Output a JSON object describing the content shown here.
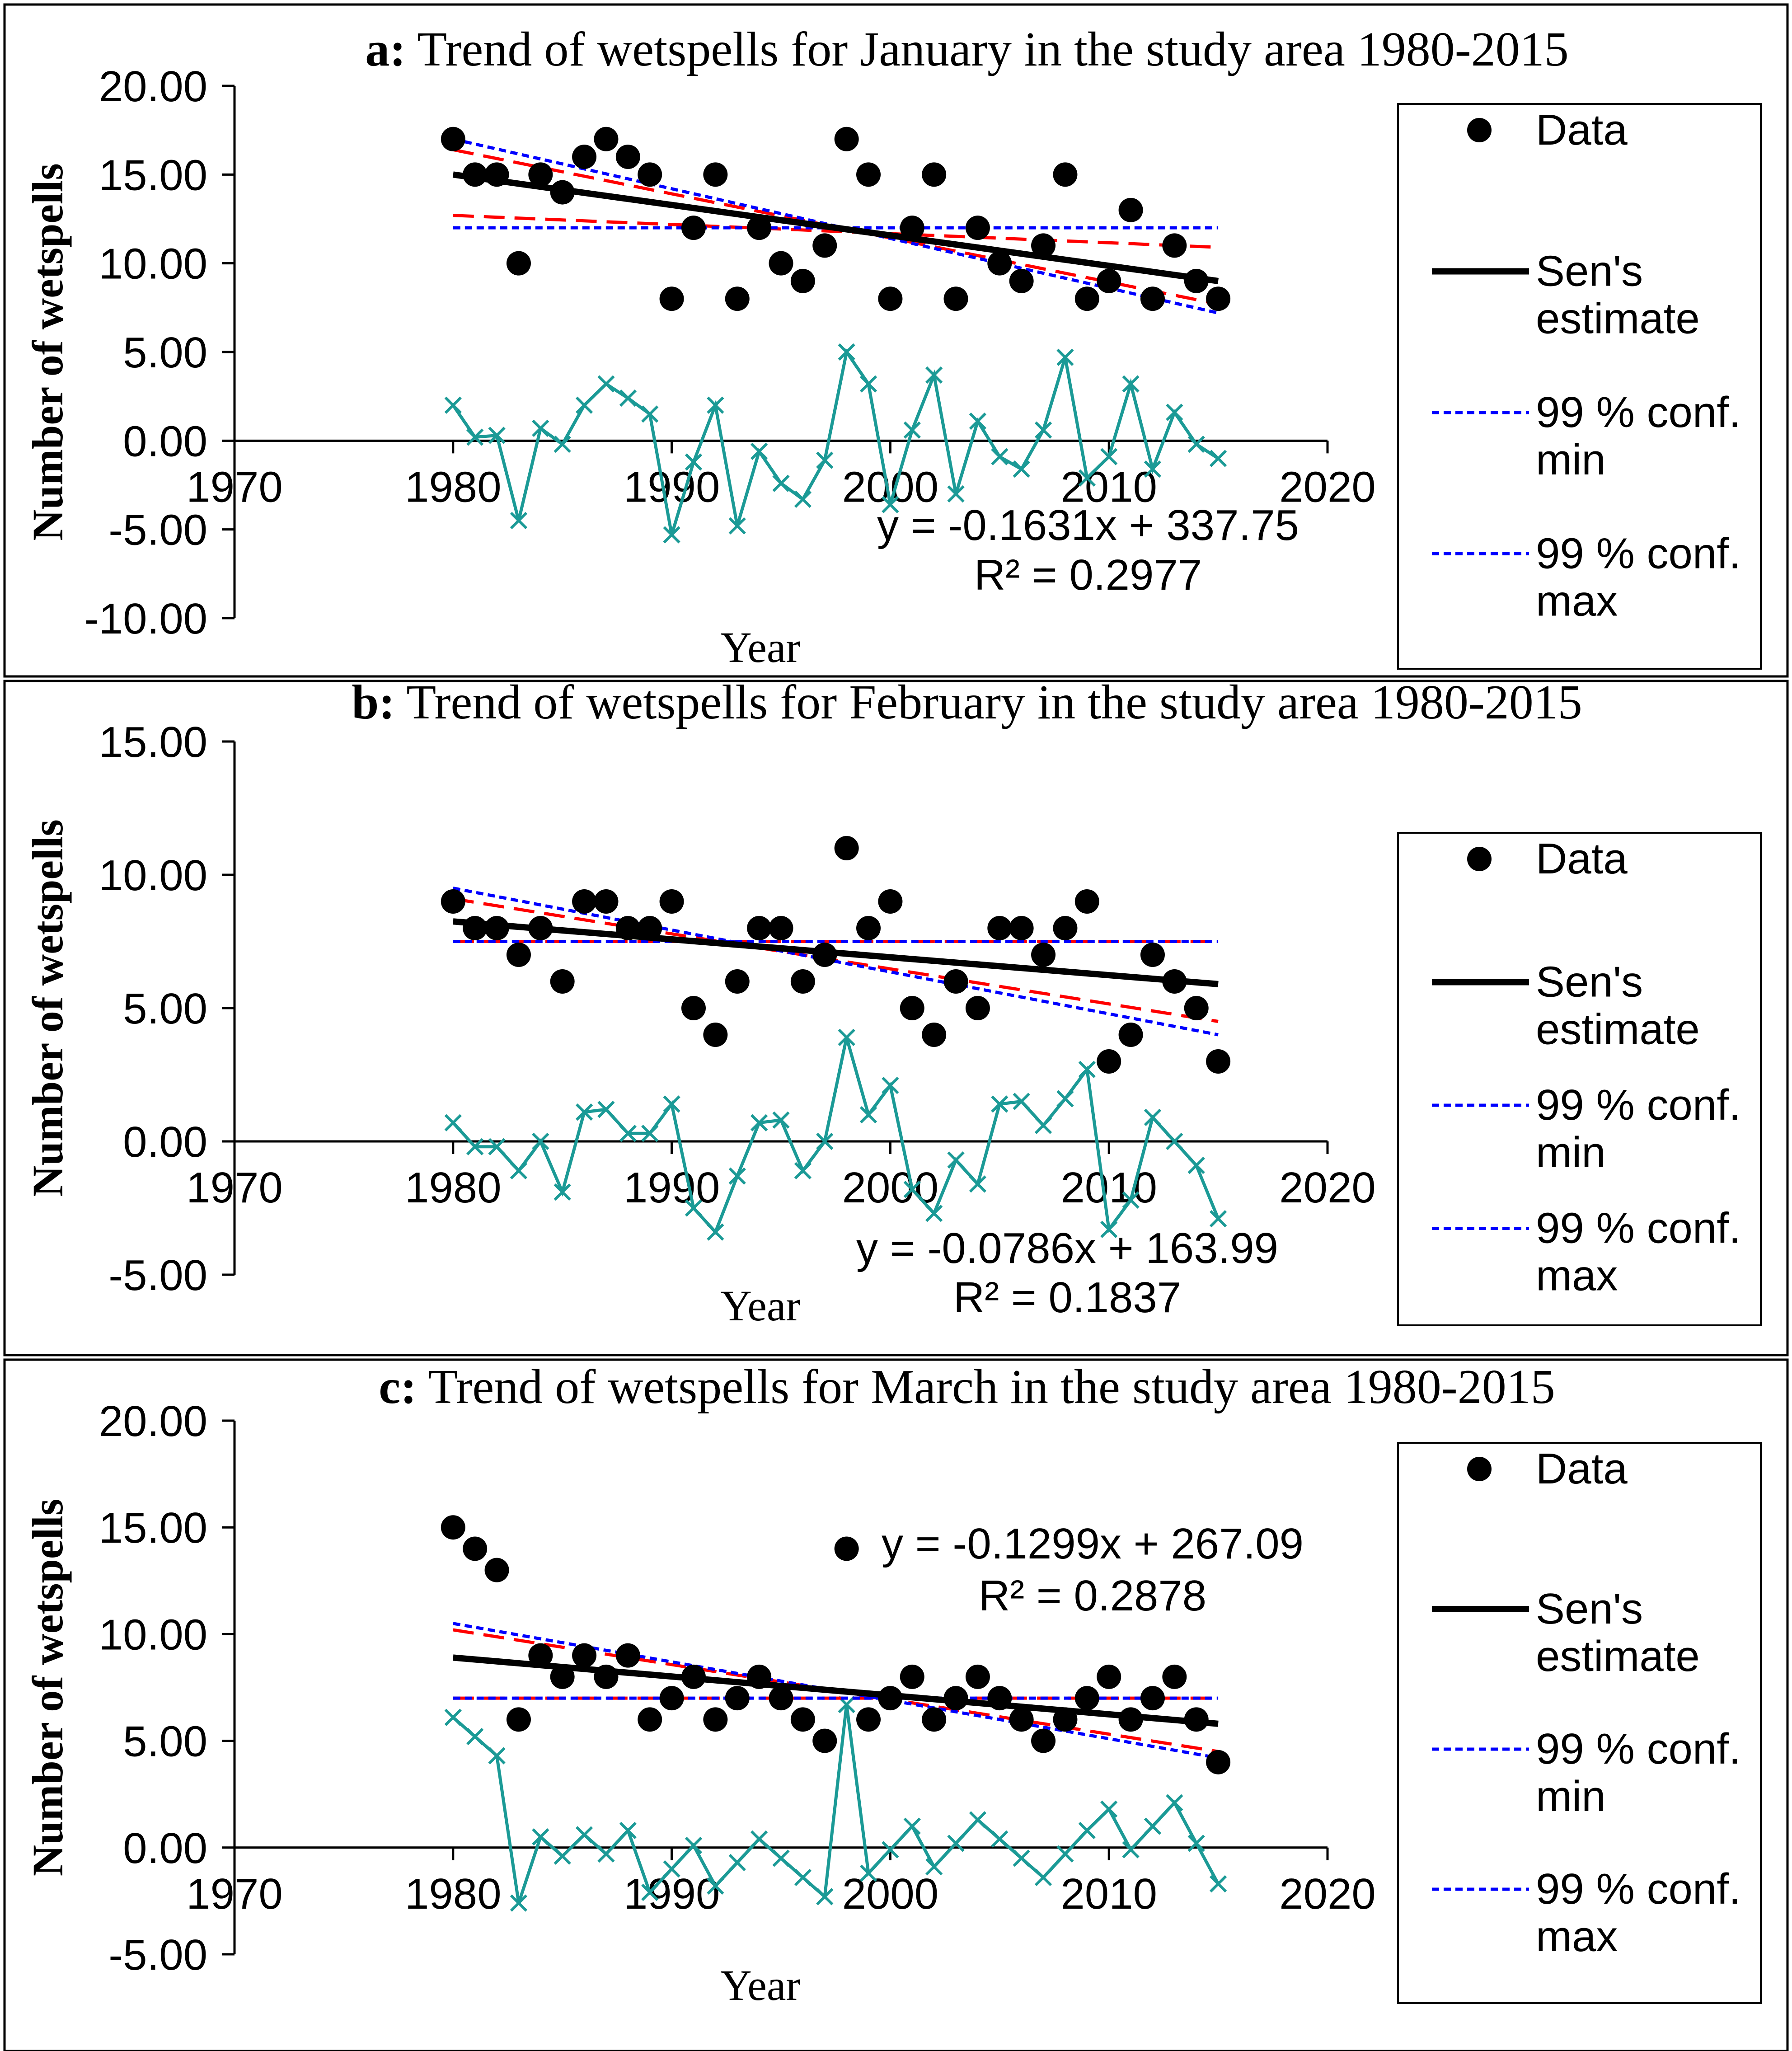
{
  "chart_data": [
    {
      "type": "scatter",
      "panel": "a",
      "title_prefix": "a:",
      "title": "Trend of wetspells for January in the study area 1980-2015",
      "xlabel": "Year",
      "ylabel": "Number of wetspells",
      "xlim": [
        1970,
        2020
      ],
      "ylim": [
        -10,
        20
      ],
      "xticks": [
        1970,
        1980,
        1990,
        2000,
        2010,
        2020
      ],
      "yticks": [
        -10,
        -5,
        0,
        5,
        10,
        15,
        20
      ],
      "ytick_labels": [
        "-10.00",
        "-5.00",
        "0.00",
        "5.00",
        "10.00",
        "15.00",
        "20.00"
      ],
      "x": [
        1980,
        1981,
        1982,
        1983,
        1984,
        1985,
        1986,
        1987,
        1988,
        1989,
        1990,
        1991,
        1992,
        1993,
        1994,
        1995,
        1996,
        1997,
        1998,
        1999,
        2000,
        2001,
        2002,
        2003,
        2004,
        2005,
        2006,
        2007,
        2008,
        2009,
        2010,
        2011,
        2012,
        2013,
        2014,
        2015
      ],
      "data": [
        17,
        15,
        15,
        10,
        15,
        14,
        16,
        17,
        16,
        15,
        8,
        12,
        15,
        8,
        12,
        10,
        9,
        11,
        17,
        15,
        8,
        12,
        15,
        8,
        12,
        10,
        9,
        11,
        15,
        8,
        9,
        13,
        8,
        11,
        9,
        8
      ],
      "residuals": [
        2.0,
        0.2,
        0.3,
        -4.5,
        0.7,
        -0.2,
        2.0,
        3.2,
        2.4,
        1.5,
        -5.3,
        -1.2,
        2.0,
        -4.8,
        -0.6,
        -2.4,
        -3.3,
        -1.1,
        5.0,
        3.2,
        -3.6,
        0.6,
        3.7,
        -3.0,
        1.1,
        -0.9,
        -1.6,
        0.6,
        4.7,
        -2.1,
        -0.9,
        3.2,
        -1.6,
        1.6,
        -0.2,
        -1.0
      ],
      "sens_estimate": {
        "x": [
          1980,
          2015
        ],
        "y": [
          15.0,
          9.0
        ]
      },
      "conf99_min": {
        "x": [
          1980,
          2015
        ],
        "y": [
          12.0,
          12.0
        ]
      },
      "conf99_max": {
        "x": [
          1980,
          2015
        ],
        "y": [
          17.0,
          7.2
        ]
      },
      "conf95_a": {
        "x": [
          1980,
          2015
        ],
        "y": [
          16.4,
          7.7
        ]
      },
      "conf95_b": {
        "x": [
          1980,
          2015
        ],
        "y": [
          12.7,
          10.9
        ]
      },
      "equation": "y = -0.1631x + 337.75",
      "r_squared": "R² = 0.2977",
      "legend": [
        {
          "key": "data",
          "label_lines": [
            "Data"
          ]
        },
        {
          "key": "sens",
          "label_lines": [
            "Sen's",
            "estimate"
          ]
        },
        {
          "key": "min",
          "label_lines": [
            "99 % conf.",
            "min"
          ]
        },
        {
          "key": "max",
          "label_lines": [
            "99 % conf.",
            "max"
          ]
        }
      ]
    },
    {
      "type": "scatter",
      "panel": "b",
      "title_prefix": "b:",
      "title": "Trend of wetspells for February in the study area 1980-2015",
      "xlabel": "Year",
      "ylabel": "Number of wetspells",
      "xlim": [
        1970,
        2020
      ],
      "ylim": [
        -5,
        15
      ],
      "xticks": [
        1970,
        1980,
        1990,
        2000,
        2010,
        2020
      ],
      "yticks": [
        -5,
        0,
        5,
        10,
        15
      ],
      "ytick_labels": [
        "-5.00",
        "0.00",
        "5.00",
        "10.00",
        "15.00"
      ],
      "x": [
        1980,
        1981,
        1982,
        1983,
        1984,
        1985,
        1986,
        1987,
        1988,
        1989,
        1990,
        1991,
        1992,
        1993,
        1994,
        1995,
        1996,
        1997,
        1998,
        1999,
        2000,
        2001,
        2002,
        2003,
        2004,
        2005,
        2006,
        2007,
        2008,
        2009,
        2010,
        2011,
        2012,
        2013,
        2014,
        2015
      ],
      "data": [
        9,
        8,
        8,
        7,
        8,
        6,
        9,
        9,
        8,
        8,
        9,
        5,
        4,
        6,
        8,
        8,
        6,
        7,
        11,
        8,
        9,
        5,
        4,
        6,
        5,
        8,
        8,
        7,
        8,
        9,
        3,
        4,
        7,
        6,
        5,
        3
      ],
      "residuals": [
        0.7,
        -0.2,
        -0.2,
        -1.1,
        0.0,
        -1.9,
        1.1,
        1.2,
        0.3,
        0.3,
        1.4,
        -2.5,
        -3.4,
        -1.3,
        0.7,
        0.8,
        -1.1,
        0.0,
        3.9,
        1.0,
        2.1,
        -1.8,
        -2.7,
        -0.7,
        -1.6,
        1.4,
        1.5,
        0.6,
        1.6,
        2.7,
        -3.3,
        -2.2,
        0.9,
        0.0,
        -0.9,
        -2.9
      ],
      "sens_estimate": {
        "x": [
          1980,
          2015
        ],
        "y": [
          8.25,
          5.9
        ]
      },
      "conf99_min": {
        "x": [
          1980,
          2015
        ],
        "y": [
          7.5,
          7.5
        ]
      },
      "conf99_max": {
        "x": [
          1980,
          2015
        ],
        "y": [
          9.5,
          4.0
        ]
      },
      "conf95_a": {
        "x": [
          1980,
          2015
        ],
        "y": [
          9.1,
          4.5
        ]
      },
      "conf95_b": {
        "x": [
          1980,
          2015
        ],
        "y": [
          7.5,
          7.5
        ]
      },
      "equation": "y = -0.0786x + 163.99",
      "r_squared": "R² = 0.1837",
      "legend": [
        {
          "key": "data",
          "label_lines": [
            "Data"
          ]
        },
        {
          "key": "sens",
          "label_lines": [
            "Sen's",
            "estimate"
          ]
        },
        {
          "key": "min",
          "label_lines": [
            "99 % conf.",
            "min"
          ]
        },
        {
          "key": "max",
          "label_lines": [
            "99 % conf.",
            "max"
          ]
        }
      ]
    },
    {
      "type": "scatter",
      "panel": "c",
      "title_prefix": "c:",
      "title": "Trend of wetspells for March in the study area 1980-2015",
      "xlabel": "Year",
      "ylabel": "Number of wetspells",
      "xlim": [
        1970,
        2020
      ],
      "ylim": [
        -5,
        20
      ],
      "xticks": [
        1970,
        1980,
        1990,
        2000,
        2010,
        2020
      ],
      "yticks": [
        -5,
        0,
        5,
        10,
        15,
        20
      ],
      "ytick_labels": [
        "-5.00",
        "0.00",
        "5.00",
        "10.00",
        "15.00",
        "20.00"
      ],
      "x": [
        1980,
        1981,
        1982,
        1983,
        1984,
        1985,
        1986,
        1987,
        1988,
        1989,
        1990,
        1991,
        1992,
        1993,
        1994,
        1995,
        1996,
        1997,
        1998,
        1999,
        2000,
        2001,
        2002,
        2003,
        2004,
        2005,
        2006,
        2007,
        2008,
        2009,
        2010,
        2011,
        2012,
        2013,
        2014,
        2015
      ],
      "data": [
        15,
        14,
        13,
        6,
        9,
        8,
        9,
        8,
        9,
        6,
        7,
        8,
        6,
        7,
        8,
        7,
        6,
        5,
        14,
        6,
        7,
        8,
        6,
        7,
        8,
        7,
        6,
        5,
        6,
        7,
        8,
        6,
        7,
        8,
        6,
        4
      ],
      "residuals": [
        6.1,
        5.2,
        4.3,
        -2.6,
        0.5,
        -0.4,
        0.6,
        -0.3,
        0.8,
        -2.1,
        -1.0,
        0.1,
        -1.8,
        -0.7,
        0.4,
        -0.5,
        -1.4,
        -2.3,
        6.7,
        -1.2,
        -0.1,
        1.0,
        -0.9,
        0.2,
        1.3,
        0.4,
        -0.5,
        -1.4,
        -0.3,
        0.8,
        1.8,
        -0.1,
        1.0,
        2.1,
        0.2,
        -1.7
      ],
      "sens_estimate": {
        "x": [
          1980,
          2015
        ],
        "y": [
          8.9,
          5.8
        ]
      },
      "conf99_min": {
        "x": [
          1980,
          2015
        ],
        "y": [
          7.0,
          7.0
        ]
      },
      "conf99_max": {
        "x": [
          1980,
          2015
        ],
        "y": [
          10.5,
          4.2
        ]
      },
      "conf95_a": {
        "x": [
          1980,
          2015
        ],
        "y": [
          10.2,
          4.5
        ]
      },
      "conf95_b": {
        "x": [
          1980,
          2015
        ],
        "y": [
          7.0,
          7.0
        ]
      },
      "equation": "y = -0.1299x + 267.09",
      "r_squared": "R² = 0.2878",
      "legend": [
        {
          "key": "data",
          "label_lines": [
            "Data"
          ]
        },
        {
          "key": "sens",
          "label_lines": [
            "Sen's",
            "estimate"
          ]
        },
        {
          "key": "min",
          "label_lines": [
            "99 % conf.",
            "min"
          ]
        },
        {
          "key": "max",
          "label_lines": [
            "99 % conf.",
            "max"
          ]
        }
      ]
    }
  ],
  "colors": {
    "data": "#000000",
    "sens": "#000000",
    "conf99": "#0000ff",
    "conf95": "#ff0000",
    "residual": "#1b9a96",
    "axis": "#000000"
  }
}
